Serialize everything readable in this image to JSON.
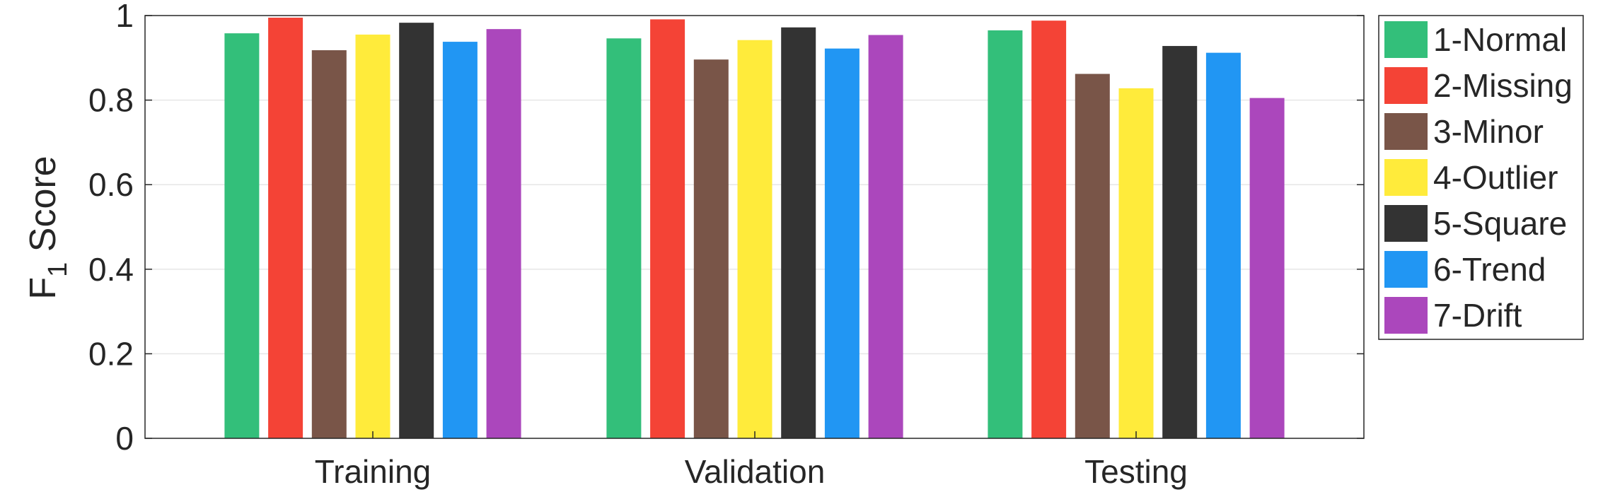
{
  "chart_data": {
    "type": "bar",
    "ylabel": {
      "main": "F",
      "sub": "1",
      "rest": " Score"
    },
    "ylim": [
      0,
      1
    ],
    "yticks": [
      "0",
      "0.2",
      "0.4",
      "0.6",
      "0.8",
      "1"
    ],
    "grid": true,
    "legend_placement": "outside-right",
    "categories": [
      "Training",
      "Validation",
      "Testing"
    ],
    "series": [
      {
        "name": "1-Normal",
        "color": "#33bf7a",
        "values": [
          0.958,
          0.946,
          0.965
        ]
      },
      {
        "name": "2-Missing",
        "color": "#f44336",
        "values": [
          0.995,
          0.991,
          0.988
        ]
      },
      {
        "name": "3-Minor",
        "color": "#795548",
        "values": [
          0.918,
          0.896,
          0.862
        ]
      },
      {
        "name": "4-Outlier",
        "color": "#ffeb3b",
        "values": [
          0.955,
          0.942,
          0.828
        ]
      },
      {
        "name": "5-Square",
        "color": "#333333",
        "values": [
          0.983,
          0.972,
          0.928
        ]
      },
      {
        "name": "6-Trend",
        "color": "#2196f3",
        "values": [
          0.938,
          0.922,
          0.912
        ]
      },
      {
        "name": "7-Drift",
        "color": "#ab47bc",
        "values": [
          0.968,
          0.954,
          0.805
        ]
      }
    ]
  }
}
